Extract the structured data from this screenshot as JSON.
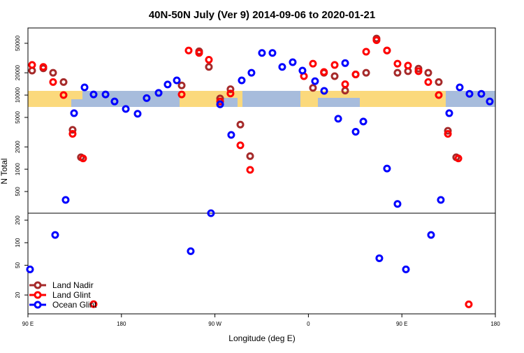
{
  "chart_data": [
    {
      "type": "scatter",
      "title": "40N-50N July (Ver 9)   2014-09-06 to 2020-01-21",
      "ylabel": "N Total",
      "xlim": [
        90,
        540
      ],
      "ylim": [
        255,
        80500
      ],
      "ylog": true,
      "grid": false,
      "legend": "bottomleft",
      "yticks": [
        500,
        1000,
        2000,
        5000,
        10000,
        20000,
        50000
      ],
      "series": [
        {
          "name": "Land Nadir",
          "color": "#a52a2a",
          "x": [
            94,
            104.8,
            114.2,
            124.3,
            133,
            141,
            238,
            254.8,
            264.2,
            275,
            285,
            294.5,
            303.9,
            364.4,
            375,
            385.3,
            395.4,
            405.5,
            415.6,
            425.6,
            435.7,
            445.8,
            455.9,
            466,
            475.4,
            485.5,
            494.3,
            502.3
          ],
          "values": [
            21400,
            23000,
            20000,
            15000,
            3400,
            1450,
            13500,
            39000,
            24000,
            9000,
            12000,
            4000,
            1500,
            12500,
            20000,
            18000,
            11500,
            19000,
            20000,
            58000,
            40000,
            20000,
            21000,
            22700,
            20000,
            15000,
            3300,
            1450
          ]
        },
        {
          "name": "Land Glint",
          "color": "#ff0000",
          "x": [
            94,
            104.8,
            114.2,
            124.3,
            133,
            143.1,
            238,
            244.7,
            254.8,
            264.2,
            275,
            285,
            294.5,
            303.9,
            355.7,
            364.4,
            375,
            385.3,
            395.4,
            405.5,
            415.6,
            425.6,
            435.7,
            445.8,
            455.9,
            466,
            475.4,
            485.5,
            494.3,
            504.4
          ],
          "values": [
            25500,
            24000,
            15000,
            10000,
            3000,
            1400,
            10200,
            40000,
            37000,
            30000,
            8200,
            10500,
            2100,
            980,
            18000,
            26500,
            20500,
            25500,
            14000,
            19000,
            38500,
            55000,
            40000,
            26500,
            25000,
            21000,
            15000,
            10000,
            3000,
            1400
          ]
        },
        {
          "name": "Ocean Glint",
          "color": "#0000ff",
          "x": [
            126.3,
            134.4,
            144.5,
            153.2,
            164.7,
            173.4,
            184.2,
            195.6,
            204.3,
            215.8,
            224.5,
            233.3,
            266.2,
            275,
            285.7,
            295.8,
            305.2,
            315.3,
            325.4,
            334.8,
            344.9,
            354.3,
            366.4,
            375.2,
            388.7,
            395.4,
            405.5,
            412.9,
            435.7,
            445.8,
            487.5,
            495.6,
            505.7,
            515.1,
            526.5,
            534.6
          ],
          "values": [
            385,
            5700,
            12700,
            10200,
            10200,
            8200,
            6500,
            5600,
            9100,
            10700,
            13900,
            15800,
            255,
            7500,
            2900,
            15800,
            20000,
            37000,
            37000,
            24000,
            27800,
            21400,
            15400,
            11400,
            4800,
            27000,
            3200,
            4400,
            1020,
            340,
            385,
            5700,
            12700,
            10400,
            10400,
            8200
          ]
        }
      ]
    },
    {
      "type": "scatter",
      "xlabel": "Longitude (deg E)",
      "xlim": [
        90,
        540
      ],
      "ylim": [
        11.2,
        248
      ],
      "ylog": true,
      "xticks": [
        {
          "value": 90,
          "label": "90 E"
        },
        180,
        {
          "value": 270,
          "label": "90 W"
        },
        {
          "value": 360,
          "label": "0"
        },
        {
          "value": 450,
          "label": "90 E"
        },
        {
          "value": 540,
          "label": "180"
        }
      ],
      "yticks": [
        20,
        50,
        100,
        200
      ],
      "series": [
        {
          "color": "#ff0000",
          "x": [
            153.2,
            514.4
          ],
          "values": [
            15.1,
            15
          ]
        },
        {
          "color": "#0000ff",
          "x": [
            92,
            116.2,
            246.7,
            428.3,
            453.9,
            478.1
          ],
          "values": [
            44,
            127,
            77,
            62,
            44,
            127
          ]
        }
      ]
    }
  ]
}
